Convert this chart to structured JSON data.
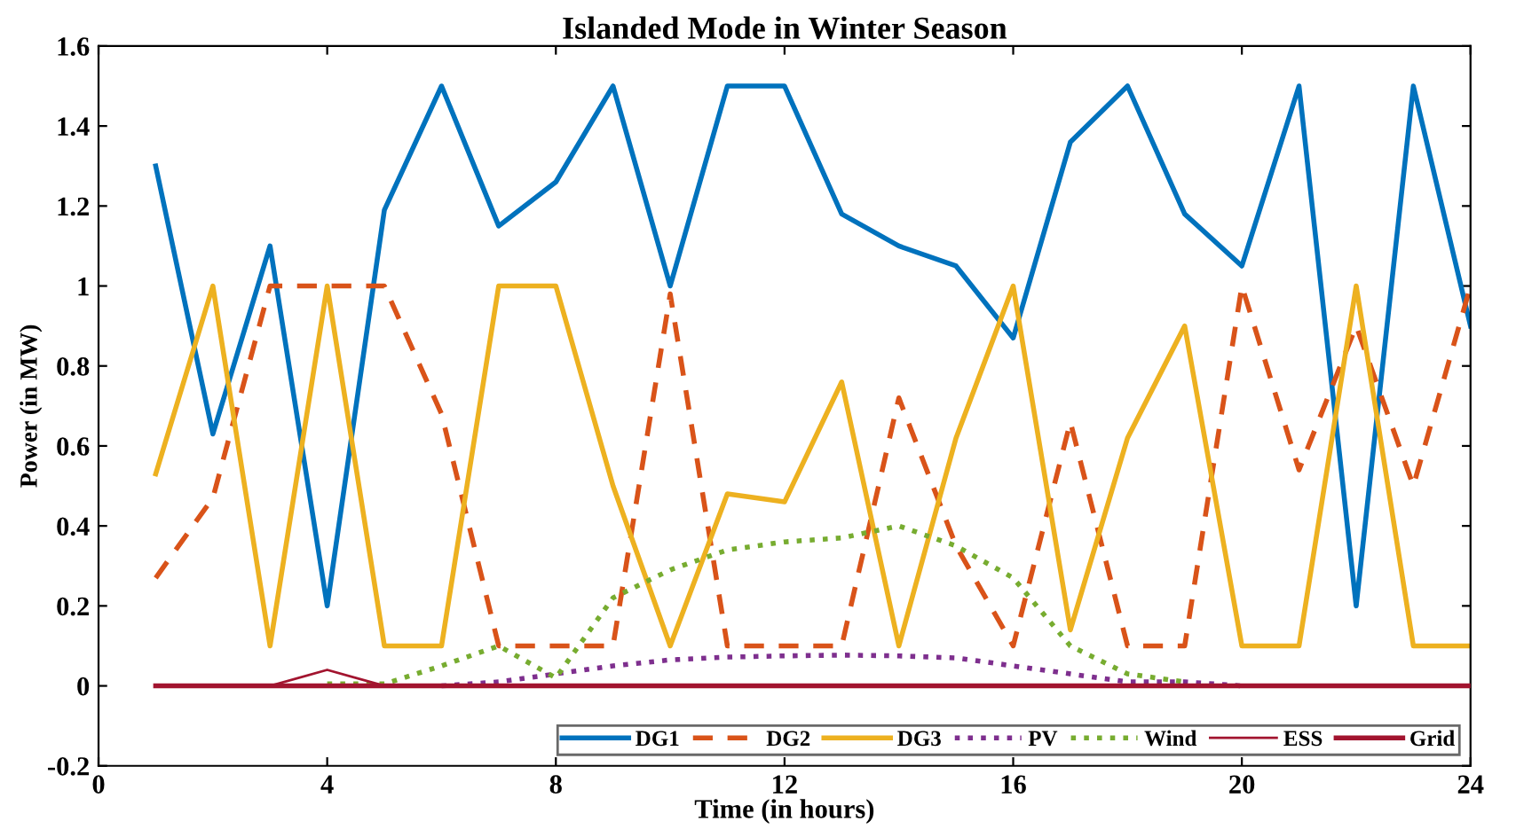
{
  "chart_data": {
    "type": "line",
    "title": "Islanded Mode in Winter Season",
    "xlabel": "Time (in hours)",
    "ylabel": "Power (in MW)",
    "x": [
      1,
      2,
      3,
      4,
      5,
      6,
      7,
      8,
      9,
      10,
      11,
      12,
      13,
      14,
      15,
      16,
      17,
      18,
      19,
      20,
      21,
      22,
      23,
      24
    ],
    "xlim": [
      0,
      24
    ],
    "xticks": [
      0,
      4,
      8,
      12,
      16,
      20,
      24
    ],
    "ylim": [
      -0.2,
      1.6
    ],
    "yticks": [
      -0.2,
      0,
      0.2,
      0.4,
      0.6,
      0.8,
      1,
      1.2,
      1.4,
      1.6
    ],
    "grid": false,
    "legend": "bottom right",
    "series": [
      {
        "name": "DG1",
        "color": "#0072bd",
        "line_style": "solid",
        "values": [
          1.3,
          0.63,
          1.1,
          0.2,
          1.19,
          1.5,
          1.15,
          1.26,
          1.5,
          1.0,
          1.5,
          1.5,
          1.18,
          1.1,
          1.05,
          0.87,
          1.36,
          1.5,
          1.18,
          1.05,
          1.5,
          0.2,
          1.5,
          0.9
        ]
      },
      {
        "name": "DG2",
        "color": "#d95319",
        "line_style": "dashed",
        "values": [
          0.27,
          0.47,
          1.0,
          1.0,
          1.0,
          0.68,
          0.1,
          0.1,
          0.1,
          0.98,
          0.1,
          0.1,
          0.1,
          0.72,
          0.35,
          0.1,
          0.66,
          0.1,
          0.1,
          1.0,
          0.54,
          0.9,
          0.5,
          1.0
        ]
      },
      {
        "name": "DG3",
        "color": "#edb120",
        "line_style": "solid",
        "values": [
          0.53,
          1.0,
          0.1,
          1.0,
          0.1,
          0.1,
          1.0,
          1.0,
          0.5,
          0.1,
          0.48,
          0.46,
          0.76,
          0.1,
          0.62,
          1.0,
          0.14,
          0.62,
          0.9,
          0.1,
          0.1,
          1.0,
          0.1,
          0.1
        ]
      },
      {
        "name": "PV",
        "color": "#7e2f8e",
        "line_style": "dotted",
        "values": [
          null,
          null,
          null,
          null,
          null,
          0,
          0.01,
          0.03,
          0.05,
          0.065,
          0.072,
          0.075,
          0.077,
          0.075,
          0.07,
          0.05,
          0.03,
          0.01,
          0.01,
          0,
          null,
          null,
          null,
          null
        ]
      },
      {
        "name": "Wind",
        "color": "#77ac30",
        "line_style": "dotted",
        "values": [
          null,
          null,
          null,
          0.005,
          0.005,
          0.05,
          0.1,
          0.02,
          0.22,
          0.29,
          0.34,
          0.36,
          0.37,
          0.4,
          0.35,
          0.27,
          0.1,
          0.03,
          0.01,
          null,
          null,
          null,
          null,
          null
        ]
      },
      {
        "name": "ESS",
        "color": "#a2142f",
        "line_style": "solid",
        "values": [
          null,
          null,
          0,
          0.04,
          0,
          null,
          null,
          null,
          null,
          null,
          null,
          null,
          null,
          null,
          null,
          null,
          null,
          null,
          null,
          null,
          null,
          null,
          null,
          null
        ]
      },
      {
        "name": "Grid",
        "color": "#a2142f",
        "line_style": "solid",
        "values": [
          0,
          0,
          0,
          0,
          0,
          0,
          0,
          0,
          0,
          0,
          0,
          0,
          0,
          0,
          0,
          0,
          0,
          0,
          0,
          0,
          0,
          0,
          0,
          0
        ]
      }
    ]
  }
}
